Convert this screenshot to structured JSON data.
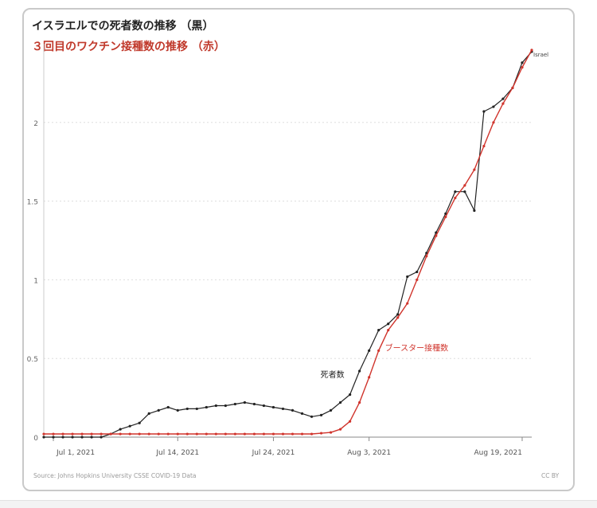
{
  "header": {
    "title_deaths": "イスラエルでの死者数の推移 （黒）",
    "title_booster": "３回目のワクチン接種数の推移 （赤）"
  },
  "footer": {
    "source": "Source: Johns Hopkins University CSSE COVID-19 Data",
    "license": "CC BY"
  },
  "colors": {
    "deaths": "#222222",
    "booster": "#d0342c",
    "grid": "#dddddd",
    "axis": "#888888"
  },
  "chart_data": {
    "type": "line",
    "x_tick_labels": [
      "Jul 1, 2021",
      "Jul 14, 2021",
      "Jul 24, 2021",
      "Aug 3, 2021",
      "Aug 19, 2021"
    ],
    "x_tick_dates": [
      "2021-07-01",
      "2021-07-14",
      "2021-07-24",
      "2021-08-03",
      "2021-08-19"
    ],
    "y_tick_labels": [
      "0",
      "0.5",
      "1",
      "1.5",
      "2"
    ],
    "ylim": [
      0,
      2.5
    ],
    "xlim": [
      "2021-06-30",
      "2021-08-20"
    ],
    "grid": true,
    "series": [
      {
        "name": "Israel",
        "label": "死者数",
        "x": [
          "2021-06-30",
          "2021-07-01",
          "2021-07-02",
          "2021-07-03",
          "2021-07-04",
          "2021-07-05",
          "2021-07-06",
          "2021-07-07",
          "2021-07-08",
          "2021-07-09",
          "2021-07-10",
          "2021-07-11",
          "2021-07-12",
          "2021-07-13",
          "2021-07-14",
          "2021-07-15",
          "2021-07-16",
          "2021-07-17",
          "2021-07-18",
          "2021-07-19",
          "2021-07-20",
          "2021-07-21",
          "2021-07-22",
          "2021-07-23",
          "2021-07-24",
          "2021-07-25",
          "2021-07-26",
          "2021-07-27",
          "2021-07-28",
          "2021-07-29",
          "2021-07-30",
          "2021-07-31",
          "2021-08-01",
          "2021-08-02",
          "2021-08-03",
          "2021-08-04",
          "2021-08-05",
          "2021-08-06",
          "2021-08-07",
          "2021-08-08",
          "2021-08-09",
          "2021-08-10",
          "2021-08-11",
          "2021-08-12",
          "2021-08-13",
          "2021-08-14",
          "2021-08-15",
          "2021-08-16",
          "2021-08-17",
          "2021-08-18",
          "2021-08-19",
          "2021-08-20"
        ],
        "y": [
          0,
          0,
          0,
          0,
          0,
          0,
          0,
          0.02,
          0.05,
          0.07,
          0.09,
          0.15,
          0.17,
          0.19,
          0.17,
          0.18,
          0.18,
          0.19,
          0.2,
          0.2,
          0.21,
          0.22,
          0.21,
          0.2,
          0.19,
          0.18,
          0.17,
          0.15,
          0.13,
          0.14,
          0.17,
          0.22,
          0.27,
          0.42,
          0.55,
          0.68,
          0.72,
          0.78,
          1.02,
          1.05,
          1.17,
          1.3,
          1.42,
          1.56,
          1.56,
          1.44,
          2.07,
          2.1,
          2.15,
          2.22,
          2.38,
          2.45
        ]
      },
      {
        "name": "ブースター接種数",
        "label": "ブースター接種数",
        "x": [
          "2021-06-30",
          "2021-07-01",
          "2021-07-02",
          "2021-07-03",
          "2021-07-04",
          "2021-07-05",
          "2021-07-06",
          "2021-07-07",
          "2021-07-08",
          "2021-07-09",
          "2021-07-10",
          "2021-07-11",
          "2021-07-12",
          "2021-07-13",
          "2021-07-14",
          "2021-07-15",
          "2021-07-16",
          "2021-07-17",
          "2021-07-18",
          "2021-07-19",
          "2021-07-20",
          "2021-07-21",
          "2021-07-22",
          "2021-07-23",
          "2021-07-24",
          "2021-07-25",
          "2021-07-26",
          "2021-07-27",
          "2021-07-28",
          "2021-07-29",
          "2021-07-30",
          "2021-07-31",
          "2021-08-01",
          "2021-08-02",
          "2021-08-03",
          "2021-08-04",
          "2021-08-05",
          "2021-08-06",
          "2021-08-07",
          "2021-08-08",
          "2021-08-09",
          "2021-08-10",
          "2021-08-11",
          "2021-08-12",
          "2021-08-13",
          "2021-08-14",
          "2021-08-15",
          "2021-08-16",
          "2021-08-17",
          "2021-08-18",
          "2021-08-19",
          "2021-08-20"
        ],
        "y": [
          0.02,
          0.02,
          0.02,
          0.02,
          0.02,
          0.02,
          0.02,
          0.02,
          0.02,
          0.02,
          0.02,
          0.02,
          0.02,
          0.02,
          0.02,
          0.02,
          0.02,
          0.02,
          0.02,
          0.02,
          0.02,
          0.02,
          0.02,
          0.02,
          0.02,
          0.02,
          0.02,
          0.02,
          0.02,
          0.025,
          0.03,
          0.05,
          0.1,
          0.22,
          0.38,
          0.55,
          0.68,
          0.76,
          0.85,
          1.0,
          1.15,
          1.28,
          1.4,
          1.52,
          1.6,
          1.7,
          1.85,
          2.0,
          2.12,
          2.22,
          2.35,
          2.46
        ]
      }
    ]
  }
}
